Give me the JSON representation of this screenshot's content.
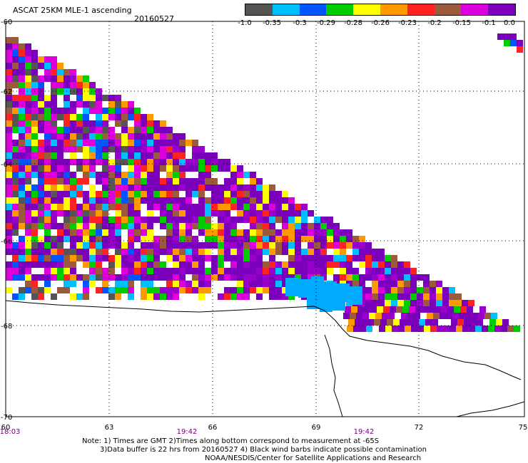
{
  "header": {
    "product": "ASCAT 25KM MLE-1 ascending",
    "date": "20160527"
  },
  "colorbar": {
    "colors": [
      "#555555",
      "#00bfff",
      "#0055ff",
      "#00cc00",
      "#ffff00",
      "#ff9900",
      "#ff2222",
      "#9b5a3c",
      "#dd00dd",
      "#7a00bb"
    ],
    "ticks": [
      "-1.0",
      "-0.35",
      "-0.3",
      "-0.29",
      "-0.28",
      "-0.26",
      "-0.23",
      "-0.2",
      "-0.15",
      "-0.1",
      "0.0"
    ]
  },
  "map": {
    "lat_labels": [
      "-60",
      "-62",
      "-64",
      "-66",
      "-68",
      "-70"
    ],
    "lon_labels": [
      "60",
      "63",
      "66",
      "69",
      "72",
      "75"
    ],
    "time_labels": [
      "18:03",
      "19:42",
      "19:42"
    ]
  },
  "notes": [
    "Note: 1) Times are GMT 2)Times along bottom correspond to measurement at -65S",
    "3)Data buffer is 22 hrs from 20160527 4) Black wind barbs indicate possible contamination",
    "NOAA/NESDIS/Center for Satellite Applications and Research"
  ]
}
